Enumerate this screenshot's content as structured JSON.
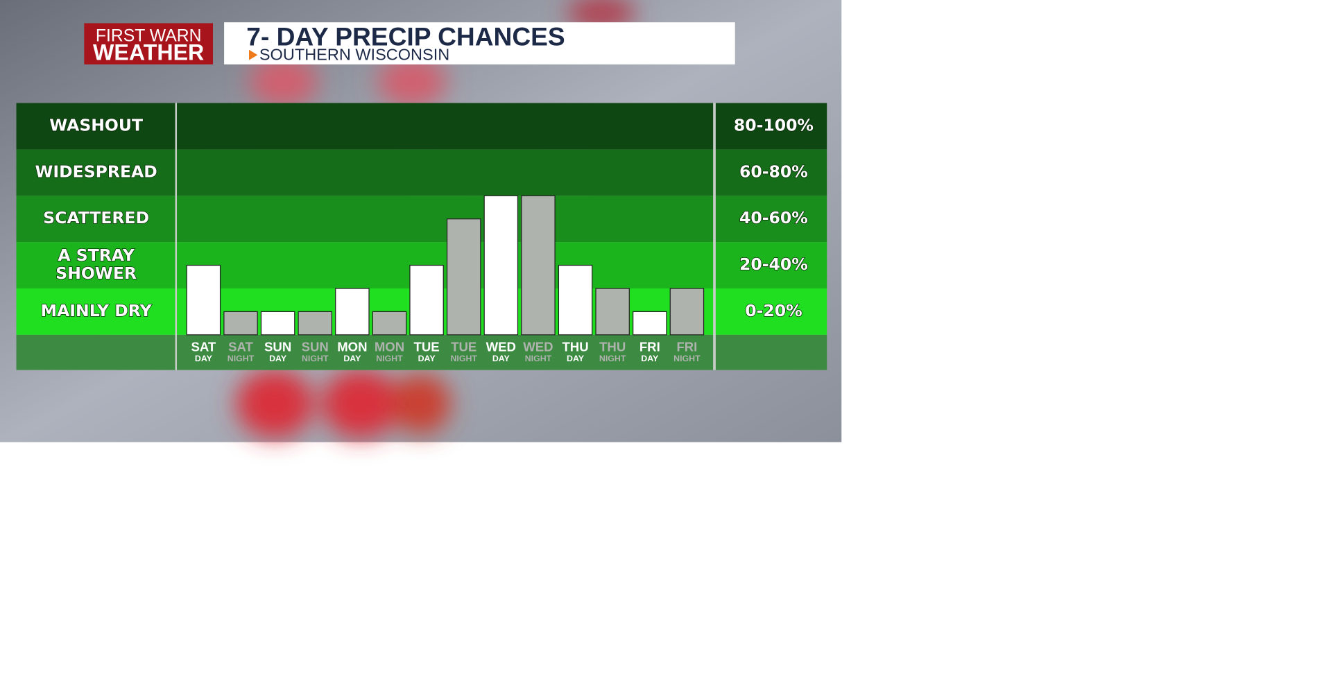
{
  "header": {
    "logo_top": "FIRST WARN",
    "logo_bottom": "WEATHER",
    "title": "7- DAY PRECIP CHANCES",
    "subtitle": "SOUTHERN WISCONSIN"
  },
  "chart_data": {
    "type": "bar",
    "ylim": [
      0,
      100
    ],
    "bands": [
      {
        "name": [
          "WASHOUT"
        ],
        "label": "80-100%",
        "min": 80,
        "max": 100,
        "color": "#0f4712"
      },
      {
        "name": [
          "WIDESPREAD"
        ],
        "label": "60-80%",
        "min": 60,
        "max": 80,
        "color": "#166d19"
      },
      {
        "name": [
          "SCATTERED"
        ],
        "label": "40-60%",
        "min": 40,
        "max": 60,
        "color": "#1a8e1c"
      },
      {
        "name": [
          "A STRAY",
          "SHOWER"
        ],
        "label": "20-40%",
        "min": 20,
        "max": 40,
        "color": "#1cb41c"
      },
      {
        "name": [
          "MAINLY DRY"
        ],
        "label": "0-20%",
        "min": 0,
        "max": 20,
        "color": "#20de20"
      }
    ],
    "categories": [
      {
        "day": "SAT",
        "part": "DAY"
      },
      {
        "day": "SAT",
        "part": "NIGHT"
      },
      {
        "day": "SUN",
        "part": "DAY"
      },
      {
        "day": "SUN",
        "part": "NIGHT"
      },
      {
        "day": "MON",
        "part": "DAY"
      },
      {
        "day": "MON",
        "part": "NIGHT"
      },
      {
        "day": "TUE",
        "part": "DAY"
      },
      {
        "day": "TUE",
        "part": "NIGHT"
      },
      {
        "day": "WED",
        "part": "DAY"
      },
      {
        "day": "WED",
        "part": "NIGHT"
      },
      {
        "day": "THU",
        "part": "DAY"
      },
      {
        "day": "THU",
        "part": "NIGHT"
      },
      {
        "day": "FRI",
        "part": "DAY"
      },
      {
        "day": "FRI",
        "part": "NIGHT"
      }
    ],
    "series": [
      {
        "values": [
          30,
          10,
          10,
          10,
          20,
          10,
          30,
          50,
          60,
          60,
          30,
          20,
          10,
          20
        ],
        "colors": [
          "#ffffff",
          "#aeb3ae",
          "#ffffff",
          "#aeb3ae",
          "#ffffff",
          "#aeb3ae",
          "#ffffff",
          "#aeb3ae",
          "#ffffff",
          "#aeb3ae",
          "#ffffff",
          "#aeb3ae",
          "#ffffff",
          "#aeb3ae"
        ]
      }
    ]
  }
}
